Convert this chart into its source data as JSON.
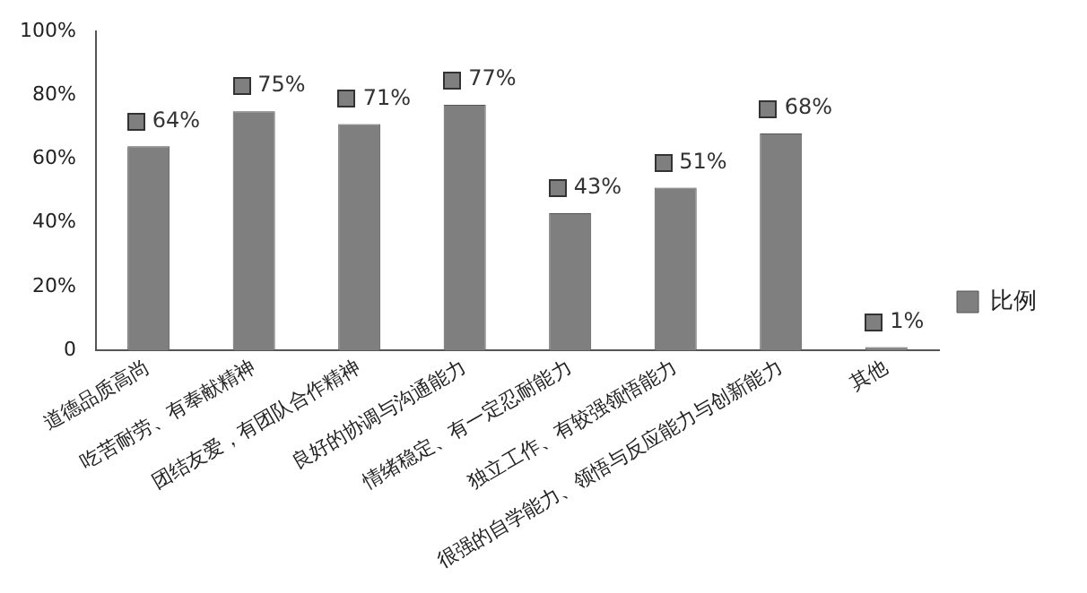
{
  "chart_data": {
    "type": "bar",
    "categories": [
      "道德品质高尚",
      "吃苦耐劳、有奉献精神",
      "团结友爱，有团队合作精神",
      "良好的协调与沟通能力",
      "情绪稳定、有一定忍耐能力",
      "独立工作、有较强领悟能力",
      "很强的自学能力、领悟与反应能力与创新能力",
      "其他"
    ],
    "series": [
      {
        "name": "比例",
        "color": "#7f7f7f",
        "values": [
          64,
          75,
          71,
          77,
          43,
          51,
          68,
          1
        ],
        "value_labels": [
          "64%",
          "75%",
          "71%",
          "77%",
          "43%",
          "51%",
          "68%",
          "1%"
        ]
      }
    ],
    "ylim": [
      0,
      100
    ],
    "yticks": [
      {
        "value": 0,
        "label": "0"
      },
      {
        "value": 20,
        "label": "20%"
      },
      {
        "value": 40,
        "label": "40%"
      },
      {
        "value": 60,
        "label": "60%"
      },
      {
        "value": 80,
        "label": "80%"
      },
      {
        "value": 100,
        "label": "100%"
      }
    ],
    "grid": false,
    "legend": "right"
  }
}
